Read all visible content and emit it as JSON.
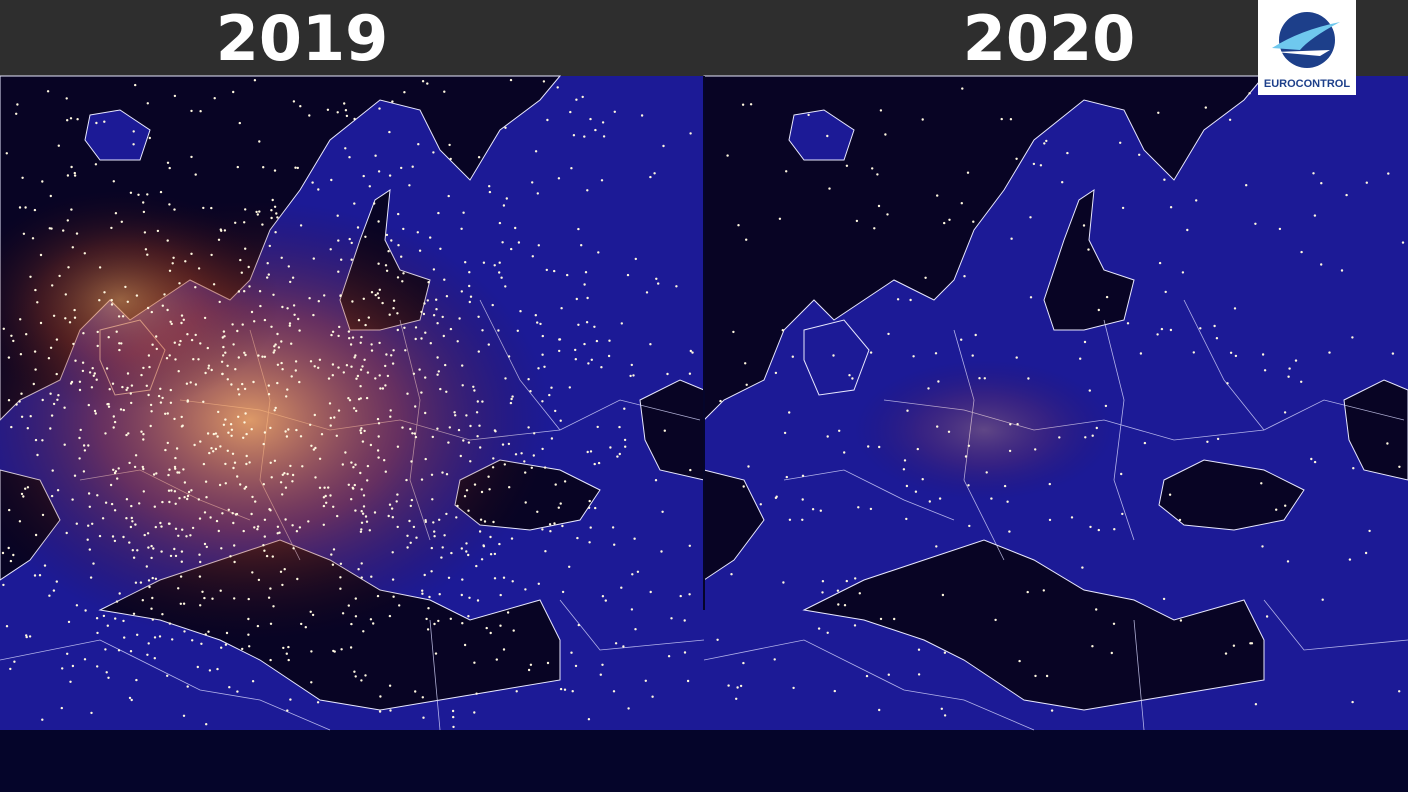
{
  "header": {
    "left_title": "2019",
    "right_title": "2020"
  },
  "logo": {
    "label": "EUROCONTROL"
  }
}
